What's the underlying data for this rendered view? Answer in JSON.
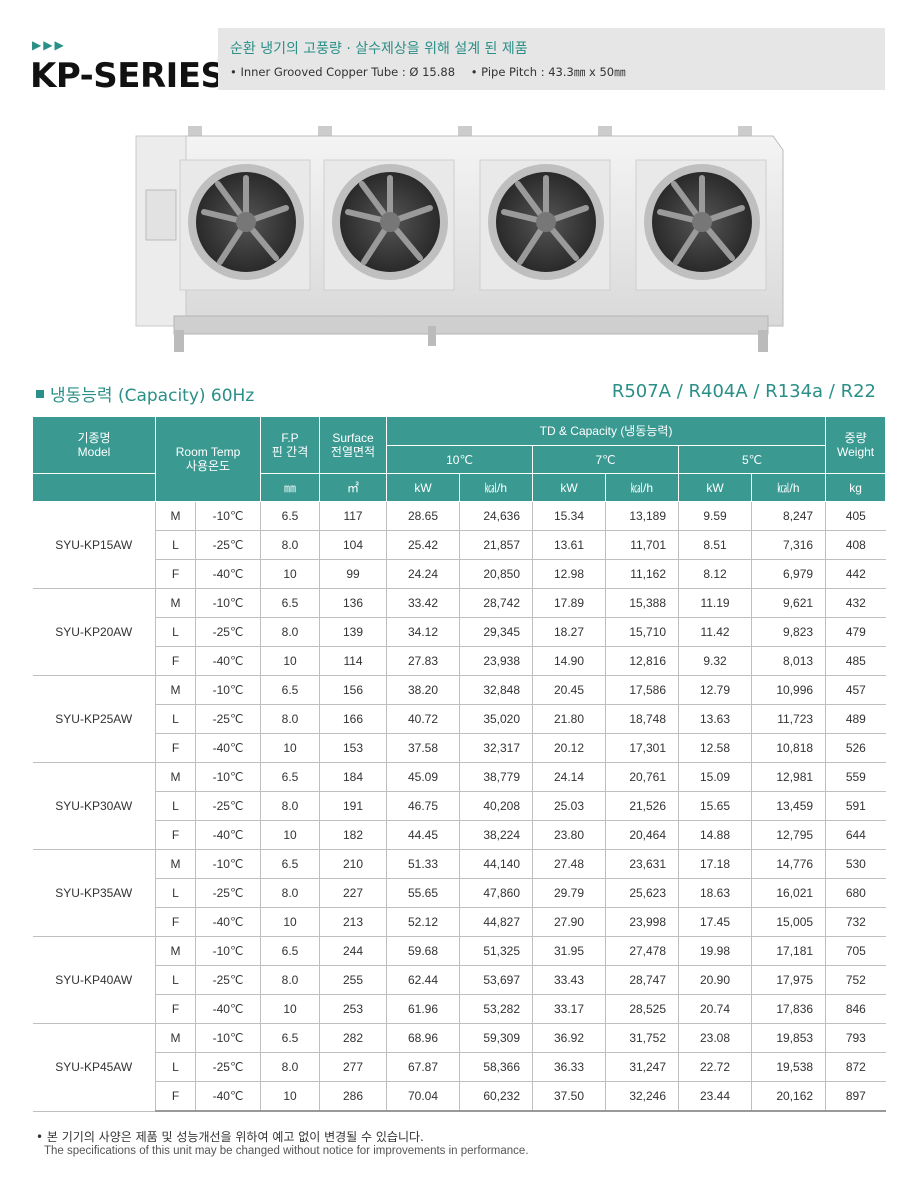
{
  "header": {
    "arrows": "▶▶▶",
    "series_title": "KP-SERIES",
    "headline": "순환 냉기의 고풍량 · 살수제상을 위해 설계 된 제품",
    "spec_tube": "• Inner Grooved Copper Tube :  Ø 15.88",
    "spec_pitch": "• Pipe Pitch : 43.3㎜ x 50㎜"
  },
  "capacity": {
    "label": "냉동능력 (Capacity) 60Hz",
    "refrigerants": "R507A / R404A / R134a / R22"
  },
  "table": {
    "headers": {
      "model": "기종명",
      "model_en": "Model",
      "room_temp": "Room Temp",
      "room_temp_ko": "사용온도",
      "fp": "F.P",
      "fp_ko": "핀 간격",
      "surface": "Surface",
      "surface_ko": "전열면적",
      "td_capacity": "TD & Capacity (냉동능력)",
      "td10": "10℃",
      "td7": "7℃",
      "td5": "5℃",
      "weight_ko": "중량",
      "weight": "Weight"
    },
    "units": {
      "fp": "㎜",
      "surface": "㎡",
      "kw": "kW",
      "kcal": "㎉/h",
      "weight": "kg"
    },
    "models": [
      {
        "name": "SYU-KP15AW",
        "rows": [
          {
            "grade": "M",
            "temp": "-10℃",
            "fp": "6.5",
            "surface": "117",
            "kw10": "28.65",
            "kc10": "24,636",
            "kw7": "15.34",
            "kc7": "13,189",
            "kw5": "9.59",
            "kc5": "8,247",
            "weight": "405"
          },
          {
            "grade": "L",
            "temp": "-25℃",
            "fp": "8.0",
            "surface": "104",
            "kw10": "25.42",
            "kc10": "21,857",
            "kw7": "13.61",
            "kc7": "11,701",
            "kw5": "8.51",
            "kc5": "7,316",
            "weight": "408"
          },
          {
            "grade": "F",
            "temp": "-40℃",
            "fp": "10",
            "surface": "99",
            "kw10": "24.24",
            "kc10": "20,850",
            "kw7": "12.98",
            "kc7": "11,162",
            "kw5": "8.12",
            "kc5": "6,979",
            "weight": "442"
          }
        ]
      },
      {
        "name": "SYU-KP20AW",
        "rows": [
          {
            "grade": "M",
            "temp": "-10℃",
            "fp": "6.5",
            "surface": "136",
            "kw10": "33.42",
            "kc10": "28,742",
            "kw7": "17.89",
            "kc7": "15,388",
            "kw5": "11.19",
            "kc5": "9,621",
            "weight": "432"
          },
          {
            "grade": "L",
            "temp": "-25℃",
            "fp": "8.0",
            "surface": "139",
            "kw10": "34.12",
            "kc10": "29,345",
            "kw7": "18.27",
            "kc7": "15,710",
            "kw5": "11.42",
            "kc5": "9,823",
            "weight": "479"
          },
          {
            "grade": "F",
            "temp": "-40℃",
            "fp": "10",
            "surface": "114",
            "kw10": "27.83",
            "kc10": "23,938",
            "kw7": "14.90",
            "kc7": "12,816",
            "kw5": "9.32",
            "kc5": "8,013",
            "weight": "485"
          }
        ]
      },
      {
        "name": "SYU-KP25AW",
        "rows": [
          {
            "grade": "M",
            "temp": "-10℃",
            "fp": "6.5",
            "surface": "156",
            "kw10": "38.20",
            "kc10": "32,848",
            "kw7": "20.45",
            "kc7": "17,586",
            "kw5": "12.79",
            "kc5": "10,996",
            "weight": "457"
          },
          {
            "grade": "L",
            "temp": "-25℃",
            "fp": "8.0",
            "surface": "166",
            "kw10": "40.72",
            "kc10": "35,020",
            "kw7": "21.80",
            "kc7": "18,748",
            "kw5": "13.63",
            "kc5": "11,723",
            "weight": "489"
          },
          {
            "grade": "F",
            "temp": "-40℃",
            "fp": "10",
            "surface": "153",
            "kw10": "37.58",
            "kc10": "32,317",
            "kw7": "20.12",
            "kc7": "17,301",
            "kw5": "12.58",
            "kc5": "10,818",
            "weight": "526"
          }
        ]
      },
      {
        "name": "SYU-KP30AW",
        "rows": [
          {
            "grade": "M",
            "temp": "-10℃",
            "fp": "6.5",
            "surface": "184",
            "kw10": "45.09",
            "kc10": "38,779",
            "kw7": "24.14",
            "kc7": "20,761",
            "kw5": "15.09",
            "kc5": "12,981",
            "weight": "559"
          },
          {
            "grade": "L",
            "temp": "-25℃",
            "fp": "8.0",
            "surface": "191",
            "kw10": "46.75",
            "kc10": "40,208",
            "kw7": "25.03",
            "kc7": "21,526",
            "kw5": "15.65",
            "kc5": "13,459",
            "weight": "591"
          },
          {
            "grade": "F",
            "temp": "-40℃",
            "fp": "10",
            "surface": "182",
            "kw10": "44.45",
            "kc10": "38,224",
            "kw7": "23.80",
            "kc7": "20,464",
            "kw5": "14.88",
            "kc5": "12,795",
            "weight": "644"
          }
        ]
      },
      {
        "name": "SYU-KP35AW",
        "rows": [
          {
            "grade": "M",
            "temp": "-10℃",
            "fp": "6.5",
            "surface": "210",
            "kw10": "51.33",
            "kc10": "44,140",
            "kw7": "27.48",
            "kc7": "23,631",
            "kw5": "17.18",
            "kc5": "14,776",
            "weight": "530"
          },
          {
            "grade": "L",
            "temp": "-25℃",
            "fp": "8.0",
            "surface": "227",
            "kw10": "55.65",
            "kc10": "47,860",
            "kw7": "29.79",
            "kc7": "25,623",
            "kw5": "18.63",
            "kc5": "16,021",
            "weight": "680"
          },
          {
            "grade": "F",
            "temp": "-40℃",
            "fp": "10",
            "surface": "213",
            "kw10": "52.12",
            "kc10": "44,827",
            "kw7": "27.90",
            "kc7": "23,998",
            "kw5": "17.45",
            "kc5": "15,005",
            "weight": "732"
          }
        ]
      },
      {
        "name": "SYU-KP40AW",
        "rows": [
          {
            "grade": "M",
            "temp": "-10℃",
            "fp": "6.5",
            "surface": "244",
            "kw10": "59.68",
            "kc10": "51,325",
            "kw7": "31.95",
            "kc7": "27,478",
            "kw5": "19.98",
            "kc5": "17,181",
            "weight": "705"
          },
          {
            "grade": "L",
            "temp": "-25℃",
            "fp": "8.0",
            "surface": "255",
            "kw10": "62.44",
            "kc10": "53,697",
            "kw7": "33.43",
            "kc7": "28,747",
            "kw5": "20.90",
            "kc5": "17,975",
            "weight": "752"
          },
          {
            "grade": "F",
            "temp": "-40℃",
            "fp": "10",
            "surface": "253",
            "kw10": "61.96",
            "kc10": "53,282",
            "kw7": "33.17",
            "kc7": "28,525",
            "kw5": "20.74",
            "kc5": "17,836",
            "weight": "846"
          }
        ]
      },
      {
        "name": "SYU-KP45AW",
        "rows": [
          {
            "grade": "M",
            "temp": "-10℃",
            "fp": "6.5",
            "surface": "282",
            "kw10": "68.96",
            "kc10": "59,309",
            "kw7": "36.92",
            "kc7": "31,752",
            "kw5": "23.08",
            "kc5": "19,853",
            "weight": "793"
          },
          {
            "grade": "L",
            "temp": "-25℃",
            "fp": "8.0",
            "surface": "277",
            "kw10": "67.87",
            "kc10": "58,366",
            "kw7": "36.33",
            "kc7": "31,247",
            "kw5": "22.72",
            "kc5": "19,538",
            "weight": "872"
          },
          {
            "grade": "F",
            "temp": "-40℃",
            "fp": "10",
            "surface": "286",
            "kw10": "70.04",
            "kc10": "60,232",
            "kw7": "37.50",
            "kc7": "32,246",
            "kw5": "23.44",
            "kc5": "20,162",
            "weight": "897"
          }
        ]
      }
    ]
  },
  "notes": {
    "ko": "• 본 기기의 사양은 제품 및 성능개선을 위하여 예고 없이 변경될 수 있습니다.",
    "en": "The specifications of this unit may be changed without notice for improvements in performance."
  },
  "colors": {
    "accent": "#2a8f87",
    "header_bg": "#3a9a92",
    "spec_box": "#e6e6e6"
  }
}
